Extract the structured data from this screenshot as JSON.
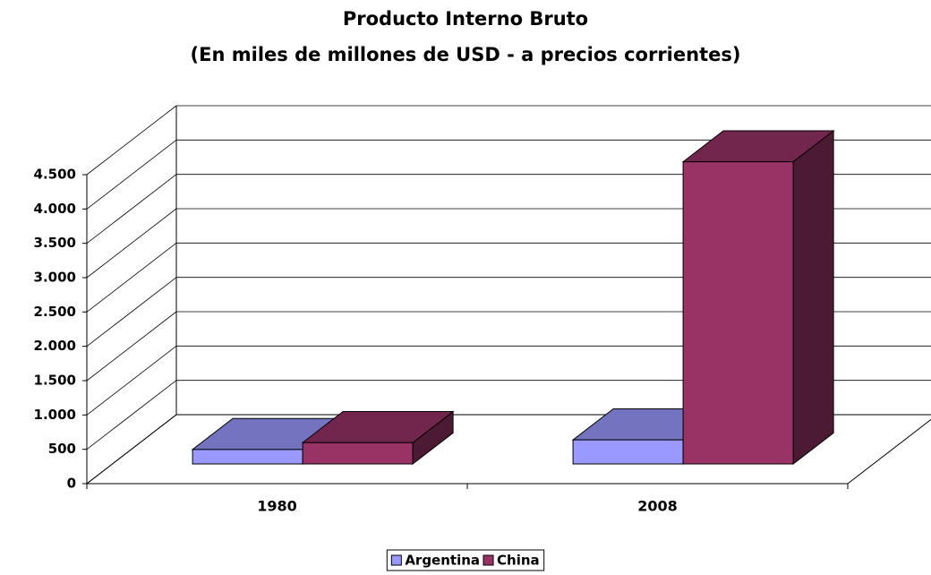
{
  "chart_data": {
    "type": "bar3d",
    "title": "Producto Interno Bruto",
    "subtitle": "(En miles de millones de USD - a precios corrientes)",
    "categories": [
      "1980",
      "2008"
    ],
    "series": [
      {
        "name": "Argentina",
        "color": "#9999ff",
        "values": [
          210,
          350
        ]
      },
      {
        "name": "China",
        "color": "#993366",
        "values": [
          310,
          4400
        ]
      }
    ],
    "ylim": [
      0,
      4500
    ],
    "yticks": [
      0,
      500,
      {
        "value": 1000,
        "label": "1.000"
      },
      {
        "value": 1500,
        "label": "1.500"
      },
      {
        "value": 2000,
        "label": "2.000"
      },
      {
        "value": 2500,
        "label": "2.500"
      },
      {
        "value": 3000,
        "label": "3.000"
      },
      {
        "value": 3500,
        "label": "3.500"
      },
      {
        "value": 4000,
        "label": "4.000"
      },
      {
        "value": 4500,
        "label": "4.500"
      }
    ],
    "grid": true,
    "legend": "bottom"
  }
}
